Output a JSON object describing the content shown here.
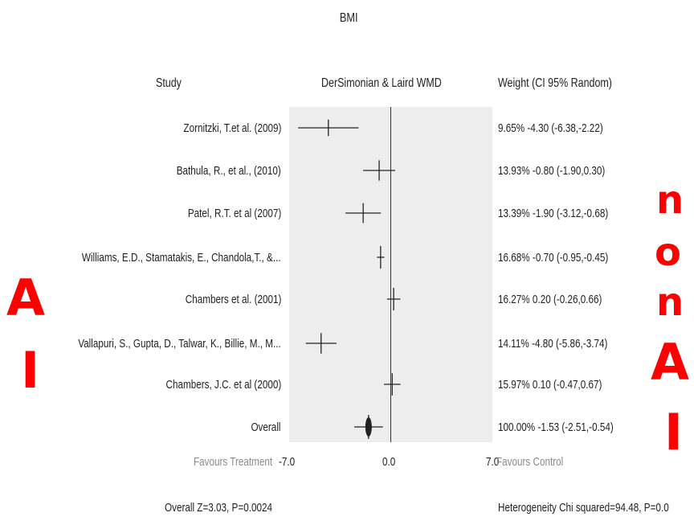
{
  "chart_data": {
    "type": "forest",
    "title": "BMI",
    "headers": {
      "study": "Study",
      "method": "DerSimonian & Laird WMD",
      "weight": "Weight (CI 95% Random)"
    },
    "studies": [
      {
        "label": "Zornitzki, T.et al. (2009)",
        "weight_text": "9.65% -4.30 (-6.38,-2.22)",
        "weight": 9.65,
        "estimate": -4.3,
        "ci": [
          -6.38,
          -2.22
        ]
      },
      {
        "label": "Bathula, R., et al., (2010)",
        "weight_text": "13.93% -0.80 (-1.90,0.30)",
        "weight": 13.93,
        "estimate": -0.8,
        "ci": [
          -1.9,
          0.3
        ]
      },
      {
        "label": "Patel, R.T. et al (2007)",
        "weight_text": "13.39% -1.90 (-3.12,-0.68)",
        "weight": 13.39,
        "estimate": -1.9,
        "ci": [
          -3.12,
          -0.68
        ]
      },
      {
        "label": "Williams, E.D.,  Stamatakis, E., Chandola,T., &...",
        "weight_text": "16.68% -0.70 (-0.95,-0.45)",
        "weight": 16.68,
        "estimate": -0.7,
        "ci": [
          -0.95,
          -0.45
        ]
      },
      {
        "label": "Chambers et al. (2001)",
        "weight_text": "16.27% 0.20 (-0.26,0.66)",
        "weight": 16.27,
        "estimate": 0.2,
        "ci": [
          -0.26,
          0.66
        ]
      },
      {
        "label": "Vallapuri, S., Gupta, D., Talwar, K., Billie, M., M...",
        "weight_text": "14.11% -4.80 (-5.86,-3.74)",
        "weight": 14.11,
        "estimate": -4.8,
        "ci": [
          -5.86,
          -3.74
        ]
      },
      {
        "label": "Chambers, J.C. et al (2000)",
        "weight_text": "15.97% 0.10 (-0.47,0.67)",
        "weight": 15.97,
        "estimate": 0.1,
        "ci": [
          -0.47,
          0.67
        ]
      }
    ],
    "overall": {
      "label": "Overall",
      "weight_text": "100.00% -1.53 (-2.51,-0.54)",
      "weight": 100.0,
      "estimate": -1.53,
      "ci": [
        -2.51,
        -0.54
      ]
    },
    "xlim": [
      -7.0,
      7.0
    ],
    "ticks": {
      "neg": "-7.0",
      "zero": "0.0",
      "pos": "7.0"
    },
    "favours_left": "Favours Treatment",
    "favours_right": "Favours Control",
    "footer_left": "Overall Z=3.03, P=0.0024",
    "footer_right": "Heterogeneity Chi squared=94.48, P=0.0"
  },
  "annotations": {
    "left_a": "A",
    "left_i": "I",
    "right_n1": "n",
    "right_o": "o",
    "right_n2": "n",
    "right_a": "A",
    "right_i": "I",
    "color": "#ff0000"
  }
}
